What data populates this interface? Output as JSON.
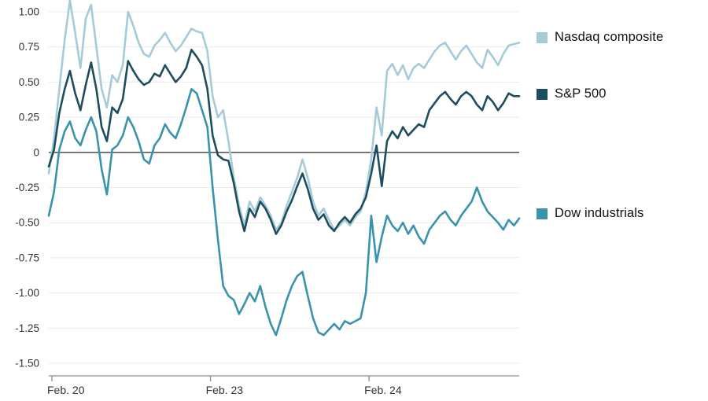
{
  "chart": {
    "legend": [
      {
        "label": "Nasdaq composite",
        "color": "#a5cbd9"
      },
      {
        "label": "S&P 500",
        "color": "#1d4e5d"
      },
      {
        "label": "Dow industrials",
        "color": "#3a93ad"
      }
    ]
  },
  "chart_data": {
    "type": "line",
    "title": "",
    "xlabel": "",
    "ylabel": "",
    "grid": true,
    "legend_position": "right",
    "ylim": [
      -1.5,
      1.0
    ],
    "yticks": [
      1.0,
      0.75,
      0.5,
      0.25,
      0,
      -0.25,
      -0.5,
      -0.75,
      -1.0,
      -1.25,
      -1.5
    ],
    "ytick_labels": [
      "1.00",
      "0.75",
      "0.50",
      "0.25",
      "0",
      "-0.25",
      "-0.50",
      "-0.75",
      "-1.00",
      "-1.25",
      "-1.50"
    ],
    "zero_line_value": 0,
    "n_points": 90,
    "xtick_labels": [
      "Feb. 20",
      "Feb. 23",
      "Feb. 24"
    ],
    "xtick_positions": [
      0,
      30,
      60
    ],
    "colors": {
      "grid": "#ebebeb",
      "zero_line": "#3d3d3d",
      "axis": "#8c8c8c",
      "tick_text": "#333333"
    },
    "series": [
      {
        "name": "Nasdaq composite",
        "color": "#a5cbd9",
        "values": [
          -0.15,
          0.1,
          0.45,
          0.8,
          1.08,
          0.85,
          0.6,
          0.95,
          1.05,
          0.75,
          0.45,
          0.32,
          0.55,
          0.5,
          0.62,
          1.0,
          0.9,
          0.78,
          0.7,
          0.68,
          0.76,
          0.8,
          0.85,
          0.78,
          0.72,
          0.76,
          0.82,
          0.88,
          0.86,
          0.85,
          0.72,
          0.4,
          0.25,
          0.3,
          0.08,
          -0.18,
          -0.38,
          -0.52,
          -0.35,
          -0.42,
          -0.32,
          -0.38,
          -0.45,
          -0.55,
          -0.5,
          -0.38,
          -0.28,
          -0.18,
          -0.05,
          -0.18,
          -0.35,
          -0.45,
          -0.4,
          -0.48,
          -0.55,
          -0.52,
          -0.48,
          -0.52,
          -0.46,
          -0.42,
          -0.28,
          -0.05,
          0.32,
          0.12,
          0.58,
          0.63,
          0.55,
          0.62,
          0.52,
          0.6,
          0.63,
          0.6,
          0.66,
          0.72,
          0.76,
          0.78,
          0.72,
          0.66,
          0.72,
          0.76,
          0.7,
          0.64,
          0.6,
          0.73,
          0.68,
          0.62,
          0.7,
          0.76,
          0.77,
          0.78
        ]
      },
      {
        "name": "S&P 500",
        "color": "#1d4e5d",
        "values": [
          -0.1,
          0.02,
          0.28,
          0.45,
          0.58,
          0.42,
          0.3,
          0.48,
          0.64,
          0.45,
          0.18,
          0.08,
          0.32,
          0.28,
          0.38,
          0.65,
          0.58,
          0.52,
          0.48,
          0.5,
          0.56,
          0.54,
          0.62,
          0.56,
          0.5,
          0.54,
          0.6,
          0.73,
          0.68,
          0.62,
          0.45,
          0.12,
          -0.02,
          -0.05,
          -0.06,
          -0.22,
          -0.42,
          -0.56,
          -0.4,
          -0.46,
          -0.35,
          -0.4,
          -0.48,
          -0.58,
          -0.52,
          -0.42,
          -0.34,
          -0.24,
          -0.15,
          -0.26,
          -0.4,
          -0.48,
          -0.44,
          -0.52,
          -0.56,
          -0.5,
          -0.46,
          -0.5,
          -0.44,
          -0.4,
          -0.32,
          -0.15,
          0.05,
          -0.24,
          0.08,
          0.15,
          0.1,
          0.18,
          0.12,
          0.16,
          0.2,
          0.18,
          0.3,
          0.35,
          0.4,
          0.43,
          0.38,
          0.34,
          0.4,
          0.43,
          0.4,
          0.34,
          0.3,
          0.4,
          0.36,
          0.3,
          0.35,
          0.42,
          0.4,
          0.4
        ]
      },
      {
        "name": "Dow industrials",
        "color": "#3a93ad",
        "values": [
          -0.45,
          -0.28,
          0.02,
          0.15,
          0.22,
          0.1,
          0.05,
          0.16,
          0.25,
          0.15,
          -0.12,
          -0.3,
          0.02,
          0.05,
          0.12,
          0.25,
          0.18,
          0.08,
          -0.05,
          -0.08,
          0.05,
          0.1,
          0.2,
          0.14,
          0.1,
          0.2,
          0.32,
          0.45,
          0.42,
          0.3,
          0.18,
          -0.25,
          -0.62,
          -0.95,
          -1.02,
          -1.05,
          -1.15,
          -1.08,
          -1.0,
          -1.06,
          -0.95,
          -1.1,
          -1.22,
          -1.3,
          -1.18,
          -1.05,
          -0.95,
          -0.88,
          -0.85,
          -1.02,
          -1.18,
          -1.28,
          -1.3,
          -1.26,
          -1.22,
          -1.26,
          -1.2,
          -1.22,
          -1.2,
          -1.18,
          -1.0,
          -0.45,
          -0.78,
          -0.6,
          -0.45,
          -0.52,
          -0.56,
          -0.5,
          -0.58,
          -0.52,
          -0.6,
          -0.65,
          -0.55,
          -0.5,
          -0.45,
          -0.42,
          -0.48,
          -0.52,
          -0.45,
          -0.4,
          -0.35,
          -0.25,
          -0.35,
          -0.42,
          -0.46,
          -0.5,
          -0.55,
          -0.48,
          -0.52,
          -0.47
        ]
      }
    ]
  }
}
